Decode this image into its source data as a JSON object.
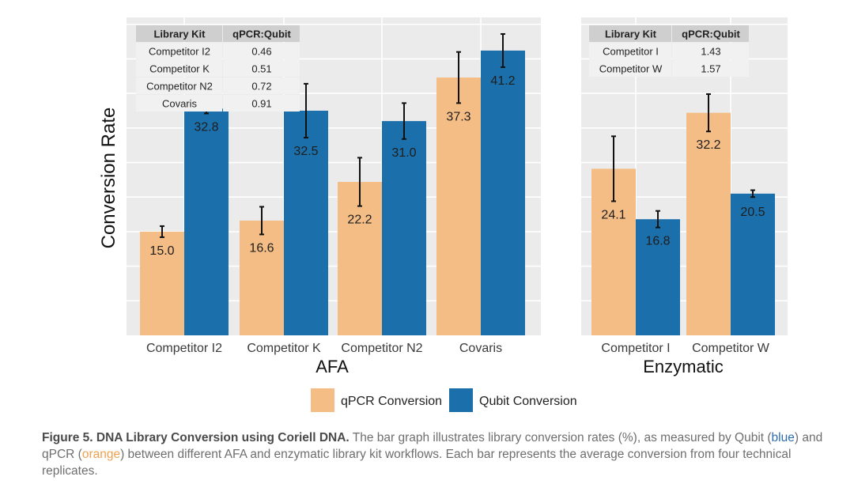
{
  "colors": {
    "qpcr": "#f5bd86",
    "qubit": "#1b6fab",
    "panel_bg": "#ebebeb",
    "grid": "#ffffff"
  },
  "chart_data": {
    "type": "bar",
    "ylabel": "Conversion Rate",
    "ylim": [
      0,
      46
    ],
    "legend": [
      "qPCR Conversion",
      "Qubit Conversion"
    ],
    "legend_position": "bottom",
    "panels": [
      {
        "name": "AFA",
        "categories": [
          "Competitor I2",
          "Competitor K",
          "Competitor N2",
          "Covaris"
        ],
        "series": [
          {
            "name": "qPCR Conversion",
            "values": [
              15.0,
              16.6,
              22.2,
              37.3
            ],
            "errors": [
              0.8,
              2.0,
              3.5,
              3.7
            ]
          },
          {
            "name": "Qubit Conversion",
            "values": [
              32.8,
              32.5,
              31.0,
              41.2
            ],
            "errors": [
              0.7,
              3.9,
              2.6,
              2.4
            ]
          }
        ],
        "value_labels": {
          "qpcr": [
            "15.0",
            "16.6",
            "22.2",
            "37.3"
          ],
          "qubit": [
            "32.8",
            "32.5",
            "31.0",
            "41.2"
          ]
        },
        "table": {
          "headers": [
            "Library Kit",
            "qPCR:Qubit"
          ],
          "rows": [
            [
              "Competitor I2",
              "0.46"
            ],
            [
              "Competitor K",
              "0.51"
            ],
            [
              "Competitor N2",
              "0.72"
            ],
            [
              "Covaris",
              "0.91"
            ]
          ]
        }
      },
      {
        "name": "Enzymatic",
        "categories": [
          "Competitor I",
          "Competitor W"
        ],
        "series": [
          {
            "name": "qPCR Conversion",
            "values": [
              24.1,
              32.2
            ],
            "errors": [
              4.7,
              2.7
            ]
          },
          {
            "name": "Qubit Conversion",
            "values": [
              16.8,
              20.5
            ],
            "errors": [
              1.2,
              0.5
            ]
          }
        ],
        "value_labels": {
          "qpcr": [
            "24.1",
            "32.2"
          ],
          "qubit": [
            "16.8",
            "20.5"
          ]
        },
        "table": {
          "headers": [
            "Library Kit",
            "qPCR:Qubit"
          ],
          "rows": [
            [
              "Competitor I",
              "1.43"
            ],
            [
              "Competitor W",
              "1.57"
            ]
          ]
        }
      }
    ]
  },
  "caption": {
    "bold": "Figure 5. DNA Library Conversion using Coriell DNA.",
    "part1": " The bar graph illustrates library conversion rates (%), as measured by Qubit (",
    "blue_word": "blue",
    "part2": ") and qPCR (",
    "orange_word": "orange",
    "part3": ") between different AFA and enzymatic library kit workflows. Each bar represents the average conversion from four technical replicates."
  }
}
